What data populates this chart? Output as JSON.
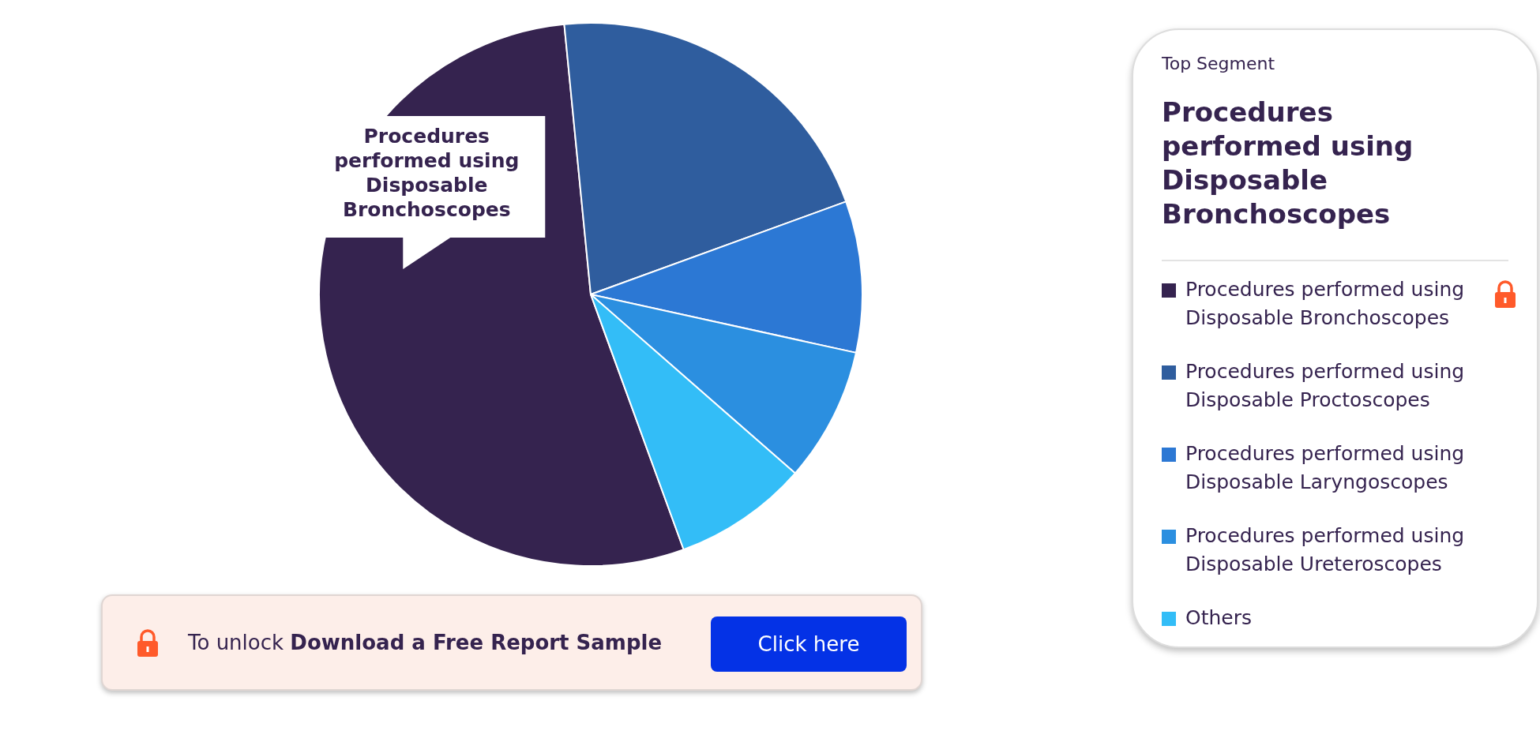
{
  "chart_data": {
    "type": "pie",
    "categories": [
      "Procedures performed using Disposable Bronchoscopes",
      "Procedures performed using Disposable Proctoscopes",
      "Procedures performed using Disposable Laryngoscopes",
      "Procedures performed using Disposable Ureteroscopes",
      "Others"
    ],
    "values": [
      54,
      21,
      9,
      8,
      8
    ],
    "colors": [
      "#35234f",
      "#2f5d9e",
      "#2c78d4",
      "#2b8fe0",
      "#33bdf7"
    ],
    "legend": "right",
    "annotations": [
      "Top Segment",
      "Procedures performed using Disposable Bronchoscopes",
      "To unlock",
      "Download a Free Report Sample",
      "Click here",
      "Procedures performed using Disposable Bronchoscopes"
    ]
  }
}
